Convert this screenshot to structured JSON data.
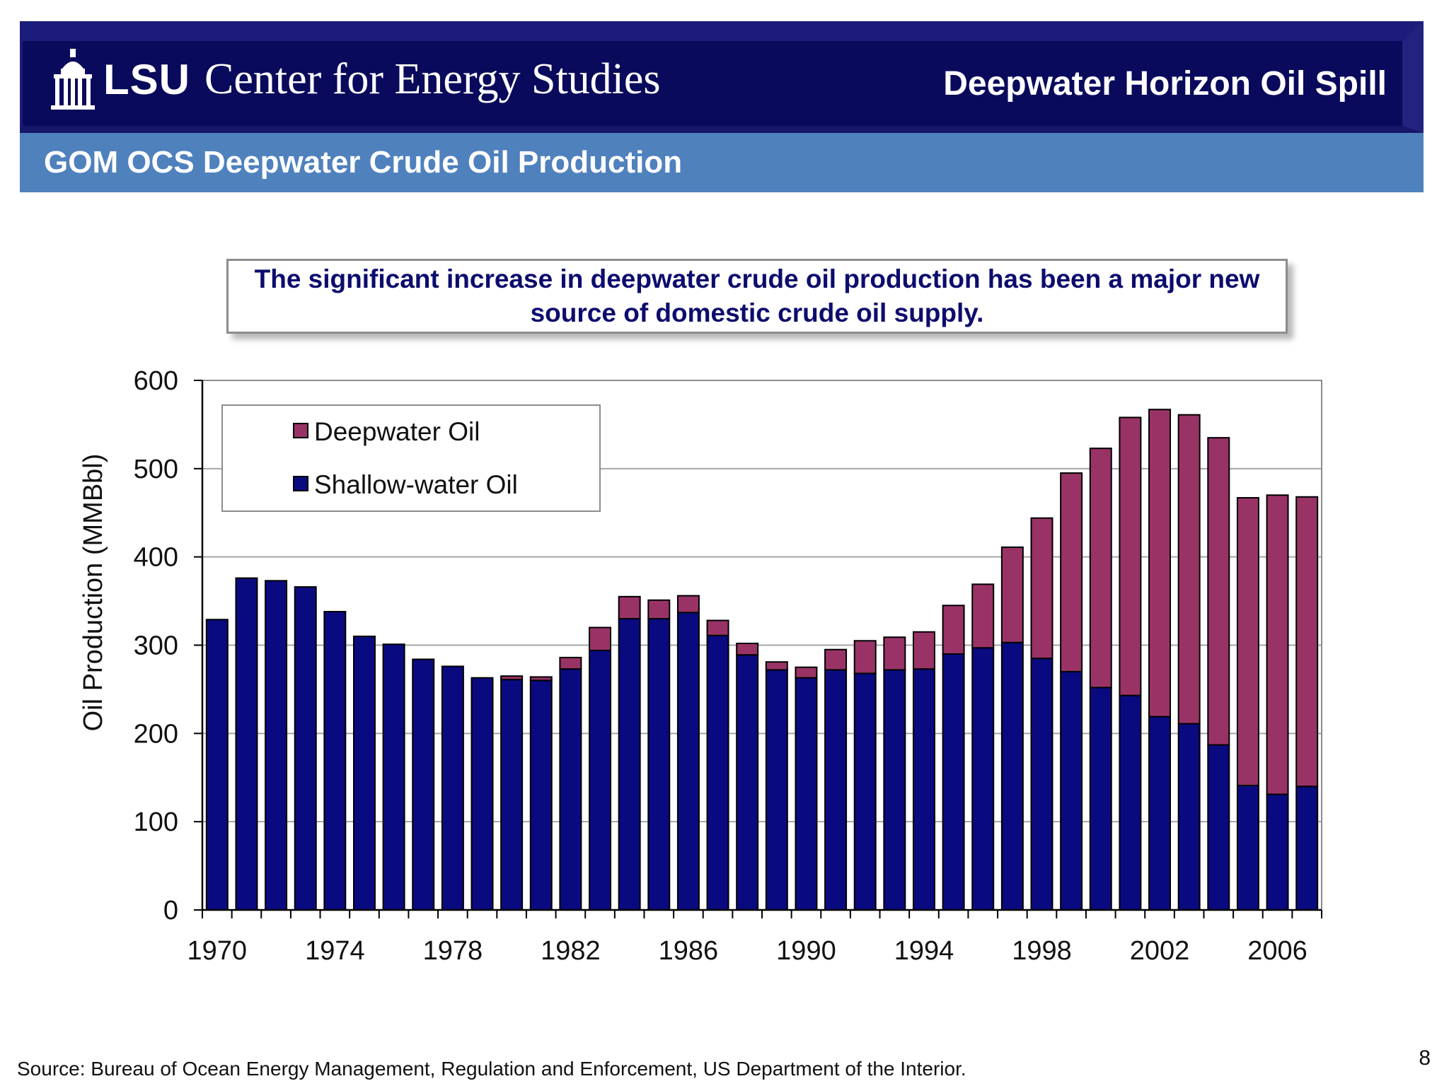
{
  "header": {
    "logo_mark": "LSU",
    "logo_text": "Center for Energy Studies",
    "deck_title": "Deepwater Horizon Oil Spill"
  },
  "subheader": {
    "title": "GOM OCS Deepwater Crude Oil Production"
  },
  "callout": {
    "text": "The significant increase in deepwater crude oil production has been a major new source of domestic crude oil supply."
  },
  "footer": {
    "source": "Source:  Bureau of Ocean Energy Management, Regulation and Enforcement, US Department of the Interior.",
    "page_number": "8"
  },
  "colors": {
    "header_bg": "#0a0a5c",
    "subheader_bg": "#4f81bd",
    "shallow": "#0a0a80",
    "deep": "#993366"
  },
  "chart_data": {
    "type": "bar",
    "stacked": true,
    "title": "",
    "xlabel": "",
    "ylabel": "Oil Production (MMBbl)",
    "ylim": [
      0,
      600
    ],
    "yticks": [
      0,
      100,
      200,
      300,
      400,
      500,
      600
    ],
    "grid": true,
    "legend_position": "top-left",
    "categories": [
      1970,
      1971,
      1972,
      1973,
      1974,
      1975,
      1976,
      1977,
      1978,
      1979,
      1980,
      1981,
      1982,
      1983,
      1984,
      1985,
      1986,
      1987,
      1988,
      1989,
      1990,
      1991,
      1992,
      1993,
      1994,
      1995,
      1996,
      1997,
      1998,
      1999,
      2000,
      2001,
      2002,
      2003,
      2004,
      2005,
      2006,
      2007
    ],
    "xtick_labels": [
      "1970",
      "1974",
      "1978",
      "1982",
      "1986",
      "1990",
      "1994",
      "1998",
      "2002",
      "2006"
    ],
    "series": [
      {
        "name": "Shallow-water Oil",
        "color": "#0a0a80",
        "values": [
          329,
          376,
          373,
          366,
          338,
          310,
          301,
          284,
          276,
          263,
          261,
          260,
          273,
          294,
          330,
          330,
          337,
          311,
          289,
          272,
          263,
          272,
          268,
          272,
          273,
          290,
          297,
          303,
          285,
          270,
          252,
          243,
          219,
          211,
          187,
          141,
          131,
          140
        ]
      },
      {
        "name": "Deepwater Oil",
        "color": "#993366",
        "values": [
          0,
          0,
          0,
          0,
          0,
          0,
          0,
          0,
          0,
          0,
          4,
          4,
          13,
          26,
          25,
          21,
          19,
          17,
          13,
          9,
          12,
          23,
          37,
          37,
          42,
          55,
          72,
          108,
          159,
          225,
          271,
          315,
          348,
          350,
          348,
          326,
          339,
          328
        ]
      }
    ],
    "legend_order": [
      "Deepwater Oil",
      "Shallow-water Oil"
    ]
  }
}
